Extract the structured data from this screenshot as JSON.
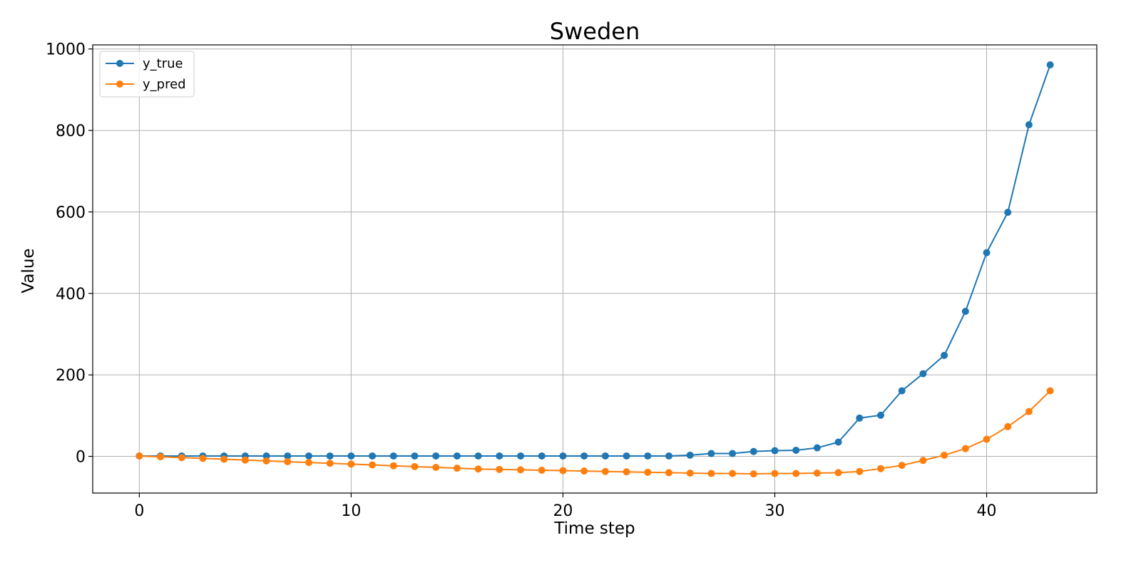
{
  "chart_data": {
    "type": "line",
    "title": "Sweden",
    "xlabel": "Time step",
    "ylabel": "Value",
    "xlim": [
      -2.2,
      45.2
    ],
    "ylim": [
      -90,
      1010
    ],
    "xticks": [
      0,
      10,
      20,
      30,
      40
    ],
    "yticks": [
      0,
      200,
      400,
      600,
      800,
      1000
    ],
    "grid": true,
    "legend_position": "top-left",
    "x": [
      0,
      1,
      2,
      3,
      4,
      5,
      6,
      7,
      8,
      9,
      10,
      11,
      12,
      13,
      14,
      15,
      16,
      17,
      18,
      19,
      20,
      21,
      22,
      23,
      24,
      25,
      26,
      27,
      28,
      29,
      30,
      31,
      32,
      33,
      34,
      35,
      36,
      37,
      38,
      39,
      40,
      41,
      42,
      43
    ],
    "series": [
      {
        "name": "y_true",
        "color": "#1f77b4",
        "values": [
          1,
          1,
          1,
          1,
          1,
          1,
          1,
          1,
          1,
          1,
          1,
          1,
          1,
          1,
          1,
          1,
          1,
          1,
          1,
          1,
          1,
          1,
          1,
          1,
          1,
          1,
          3,
          7,
          7,
          12,
          14,
          15,
          21,
          35,
          94,
          101,
          161,
          203,
          248,
          356,
          500,
          599,
          814,
          961
        ]
      },
      {
        "name": "y_pred",
        "color": "#ff7f0e",
        "values": [
          1,
          -1,
          -3,
          -5,
          -7,
          -9,
          -11,
          -13,
          -15,
          -17,
          -19,
          -21,
          -23,
          -25,
          -27,
          -29,
          -31,
          -32,
          -33,
          -34,
          -35,
          -36,
          -37,
          -38,
          -39,
          -40,
          -41,
          -42,
          -42,
          -43,
          -42,
          -42,
          -41,
          -40,
          -37,
          -30,
          -22,
          -10,
          3,
          19,
          42,
          73,
          110,
          161
        ]
      }
    ]
  }
}
